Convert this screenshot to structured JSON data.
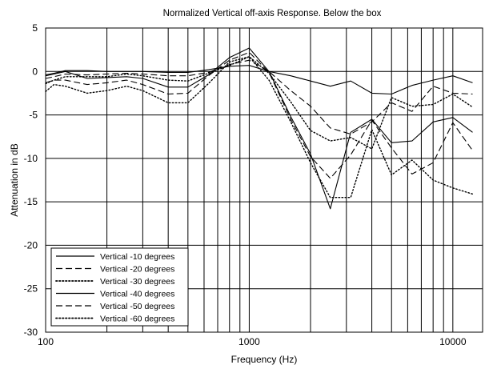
{
  "chart_data": {
    "type": "line",
    "title": "Normalized Vertical off-axis Response. Below the box",
    "xlabel": "Frequency (Hz)",
    "ylabel": "Attenuation in dB",
    "x_scale": "log",
    "xlim": [
      100,
      14000
    ],
    "ylim": [
      -30,
      5
    ],
    "x_ticks": [
      100,
      1000,
      10000
    ],
    "x_tick_labels": [
      "100",
      "1000",
      "10000"
    ],
    "y_ticks": [
      5,
      0,
      -5,
      -10,
      -15,
      -20,
      -25,
      -30
    ],
    "y_tick_labels": [
      "5",
      "0",
      "-5",
      "-10",
      "-15",
      "-20",
      "-25",
      "-30"
    ],
    "grid": true,
    "legend_position": "bottom-left",
    "x": [
      100,
      110,
      125,
      160,
      200,
      250,
      300,
      400,
      500,
      630,
      800,
      1000,
      1250,
      1600,
      2000,
      2500,
      3150,
      4000,
      5000,
      6300,
      8000,
      10000,
      12500
    ],
    "series": [
      {
        "name": "Vertical -10 degrees",
        "style": "solid",
        "width": 1.1,
        "values": [
          -0.4,
          -0.2,
          0.1,
          0.1,
          0.0,
          0.0,
          0.0,
          -0.1,
          -0.1,
          0.2,
          0.6,
          0.7,
          0.0,
          -0.5,
          -1.1,
          -1.7,
          -1.1,
          -2.5,
          -2.6,
          -1.6,
          -1.0,
          -0.5,
          -1.3
        ]
      },
      {
        "name": "Vertical -20 degrees",
        "style": "dashed",
        "width": 1.1,
        "values": [
          -0.8,
          -0.6,
          -0.3,
          -0.4,
          -0.3,
          -0.2,
          -0.3,
          -0.5,
          -0.5,
          -0.1,
          0.8,
          1.3,
          0.0,
          -2.2,
          -4.0,
          -6.5,
          -7.2,
          -5.8,
          -3.6,
          -4.6,
          -1.7,
          -2.5,
          -2.6
        ]
      },
      {
        "name": "Vertical -30 degrees",
        "style": "dotted",
        "width": 1.4,
        "values": [
          -1.4,
          -1.0,
          -0.6,
          -0.6,
          -0.6,
          -0.3,
          -0.5,
          -1.0,
          -1.1,
          -0.2,
          0.7,
          1.7,
          -0.2,
          -3.5,
          -6.8,
          -8.0,
          -7.6,
          -8.9,
          -3.0,
          -4.0,
          -3.8,
          -2.6,
          -4.1
        ]
      },
      {
        "name": "Vertical -40 degrees",
        "style": "solid",
        "width": 1.1,
        "values": [
          -0.5,
          -0.3,
          0.0,
          -0.8,
          -0.7,
          -0.6,
          -0.8,
          -1.8,
          -1.8,
          -0.4,
          1.6,
          2.7,
          0.0,
          -5.2,
          -9.5,
          -15.8,
          -7.0,
          -5.5,
          -8.2,
          -8.0,
          -5.8,
          -5.3,
          -7.0
        ]
      },
      {
        "name": "Vertical -50 degrees",
        "style": "dashed",
        "width": 1.1,
        "values": [
          -1.3,
          -1.0,
          -1.0,
          -1.5,
          -1.3,
          -1.0,
          -1.5,
          -2.6,
          -2.5,
          -0.5,
          1.3,
          2.2,
          -0.1,
          -5.5,
          -9.8,
          -12.3,
          -9.6,
          -5.6,
          -8.8,
          -11.8,
          -10.5,
          -5.9,
          -9.1
        ]
      },
      {
        "name": "Vertical -60 degrees",
        "style": "dotted",
        "width": 1.4,
        "values": [
          -2.3,
          -1.5,
          -1.7,
          -2.5,
          -2.2,
          -1.7,
          -2.2,
          -3.6,
          -3.6,
          -1.4,
          1.1,
          1.7,
          -1.0,
          -5.8,
          -10.5,
          -14.5,
          -14.5,
          -6.7,
          -11.9,
          -10.2,
          -12.5,
          -13.4,
          -14.1
        ]
      }
    ]
  }
}
